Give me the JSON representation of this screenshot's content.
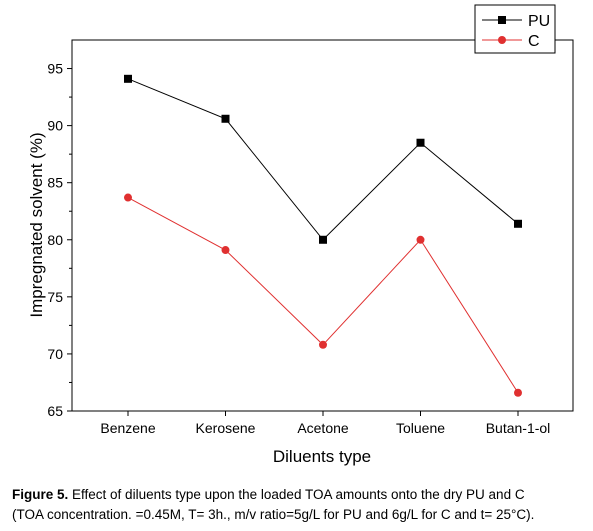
{
  "chart_data": {
    "type": "line",
    "categories": [
      "Benzene",
      "Kerosene",
      "Acetone",
      "Toluene",
      "Butan-1-ol"
    ],
    "series": [
      {
        "name": "PU",
        "values": [
          94.1,
          90.6,
          80.0,
          88.5,
          81.4
        ],
        "color": "#000000",
        "marker": "square"
      },
      {
        "name": "C",
        "values": [
          83.7,
          79.1,
          70.8,
          80.0,
          66.6
        ],
        "color": "#e03030",
        "marker": "circle"
      }
    ],
    "xlabel": "Diluents type",
    "ylabel": "Impregnated solvent (%)",
    "ylim": [
      65,
      97.5
    ],
    "yticks": [
      "65",
      "70",
      "75",
      "80",
      "85",
      "90",
      "95"
    ],
    "grid": false,
    "legend_position": "top-right"
  },
  "caption": {
    "label": "Figure 5.",
    "text_line1": "Effect of diluents type upon the loaded TOA amounts onto the dry PU and C",
    "text_line2": "(TOA concentration. =0.45M, T= 3h., m/v ratio=5g/L for PU and 6g/L for C and t= 25°C)."
  }
}
